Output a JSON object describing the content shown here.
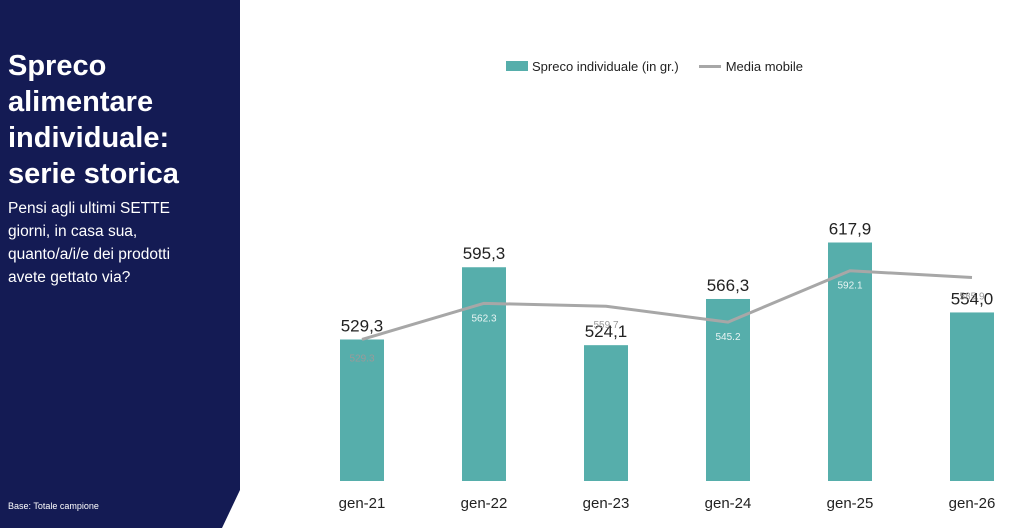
{
  "sidebar": {
    "title": "Spreco\nalimentare\nindividuale:\nserie storica",
    "question": "Pensi agli ultimi SETTE\ngiorni, in casa sua,\nquanto/a/i/e dei prodotti\navete gettato via?",
    "base": "Base: Totale campione"
  },
  "colors": {
    "bar": "#56aeab",
    "line": "#a7a7a7",
    "panel": "#141b54"
  },
  "chart_data": {
    "type": "bar",
    "categories": [
      "gen-21",
      "gen-22",
      "gen-23",
      "gen-24",
      "gen-25",
      "gen-26"
    ],
    "series": [
      {
        "name": "Spreco individuale (in gr.)",
        "type": "bar",
        "values": [
          529.3,
          595.3,
          524.1,
          566.3,
          617.9,
          554.0
        ],
        "labels": [
          "529,3",
          "595,3",
          "524,1",
          "566,3",
          "617,9",
          "554,0"
        ]
      },
      {
        "name": "Media mobile",
        "type": "line",
        "values": [
          529.3,
          562.3,
          559.7,
          545.2,
          592.1,
          585.9
        ],
        "labels": [
          "529.3",
          "562.3",
          "559.7",
          "545.2",
          "592.1",
          "585.9"
        ]
      }
    ],
    "ylim": [
      400,
      650
    ],
    "grid": false,
    "legend": "top"
  }
}
